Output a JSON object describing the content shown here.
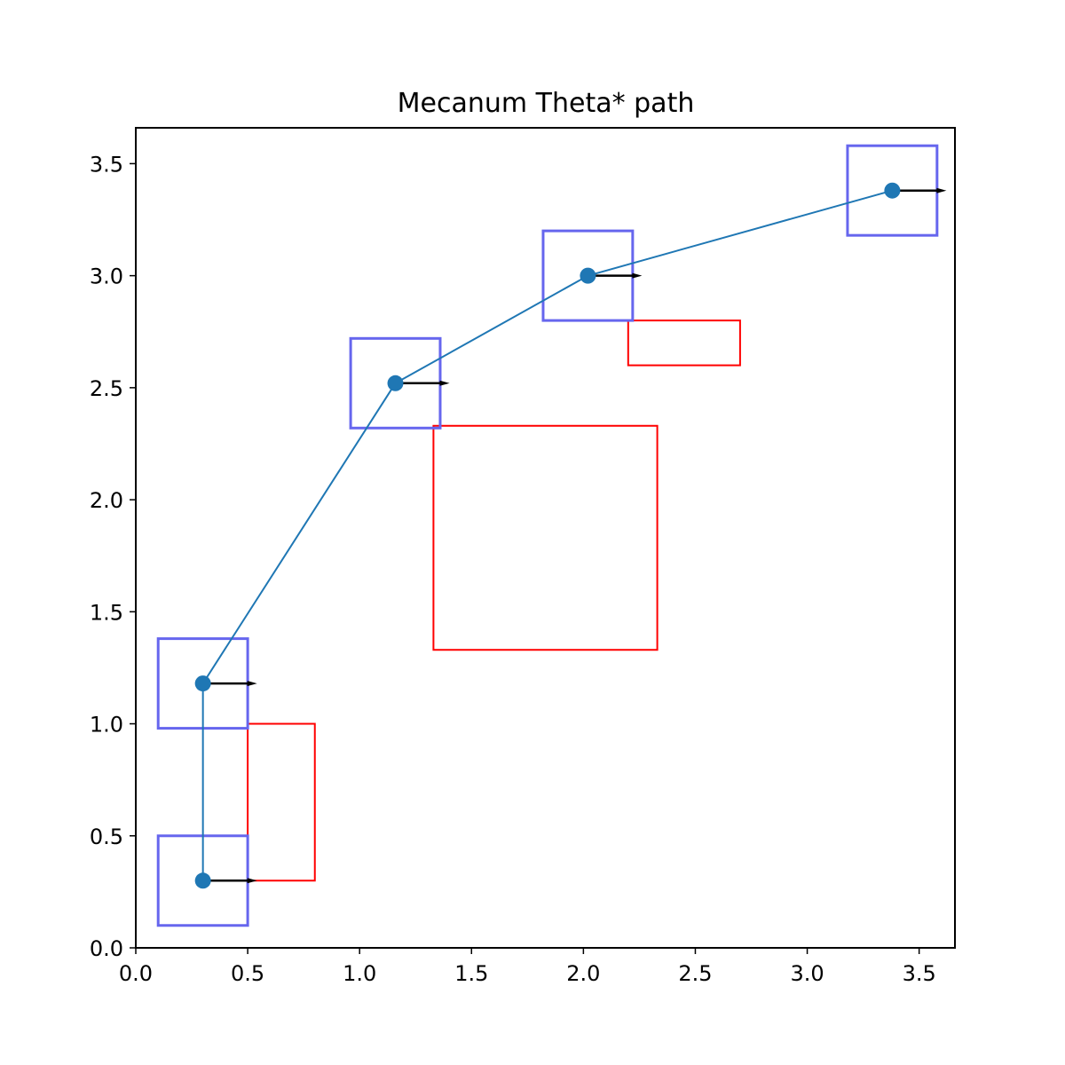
{
  "chart_data": {
    "type": "scatter",
    "title": "Mecanum Theta* path",
    "xlabel": "",
    "ylabel": "",
    "xlim": [
      0.0,
      3.66
    ],
    "ylim": [
      0.0,
      3.66
    ],
    "grid": false,
    "x_ticks": [
      "0.0",
      "0.5",
      "1.0",
      "1.5",
      "2.0",
      "2.5",
      "3.0",
      "3.5"
    ],
    "y_ticks": [
      "0.0",
      "0.5",
      "1.0",
      "1.5",
      "2.0",
      "2.5",
      "3.0",
      "3.5"
    ],
    "path": {
      "color": "#1f77b4",
      "points": [
        {
          "x": 0.3,
          "y": 0.3
        },
        {
          "x": 0.3,
          "y": 1.18
        },
        {
          "x": 1.16,
          "y": 2.52
        },
        {
          "x": 2.02,
          "y": 3.0
        },
        {
          "x": 3.38,
          "y": 3.38
        }
      ]
    },
    "heading_arrows": {
      "color": "#000000",
      "dx": 0.23
    },
    "footprints": {
      "color": "#6666ee",
      "size": 0.4
    },
    "obstacles": {
      "color": "#ff0000",
      "rects": [
        {
          "x0": 0.5,
          "y0": 0.3,
          "x1": 0.8,
          "y1": 1.0
        },
        {
          "x0": 1.33,
          "y0": 1.33,
          "x1": 2.33,
          "y1": 2.33
        },
        {
          "x0": 2.2,
          "y0": 2.6,
          "x1": 2.7,
          "y1": 2.8
        }
      ]
    }
  }
}
